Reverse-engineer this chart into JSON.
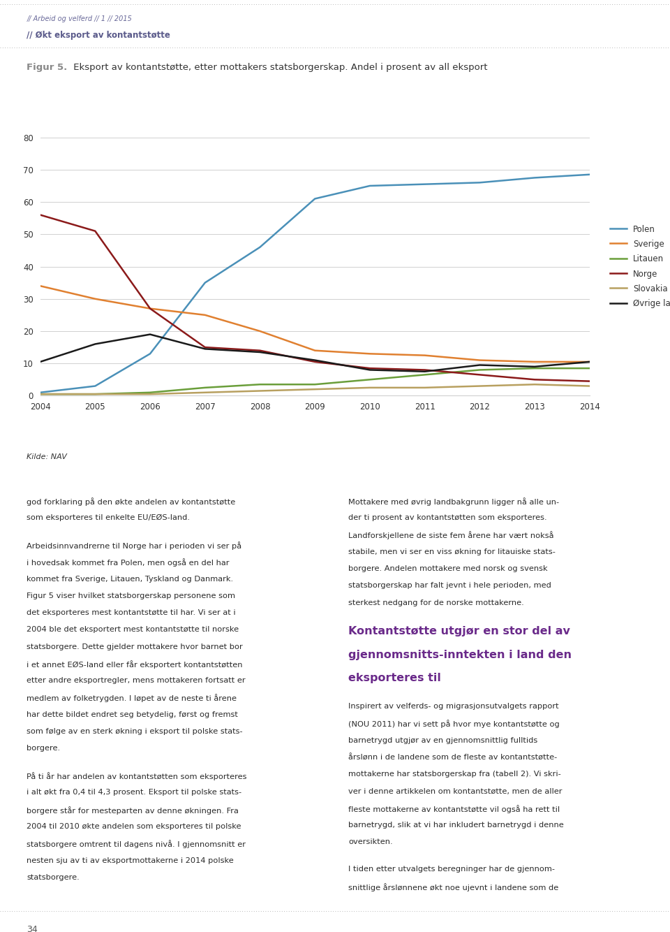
{
  "title_bold": "Figur 5.",
  "title_regular": " Eksport av kontantstøtte, etter mottakers statsborgerskap. Andel i prosent av all eksport",
  "header_line1": "// Arbeid og velferd // 1 // 2015",
  "header_line2": "// Økt eksport av kontantstøtte",
  "source_label": "Kilde: NAV",
  "page_number": "34",
  "years": [
    2004,
    2005,
    2006,
    2007,
    2008,
    2009,
    2010,
    2011,
    2012,
    2013,
    2014
  ],
  "Polen": [
    1.0,
    3.0,
    13.0,
    35.0,
    46.0,
    61.0,
    65.0,
    65.5,
    66.0,
    67.5,
    68.5
  ],
  "Sverige": [
    34.0,
    30.0,
    27.0,
    25.0,
    20.0,
    14.0,
    13.0,
    12.5,
    11.0,
    10.5,
    10.5
  ],
  "Litauen": [
    0.5,
    0.5,
    1.0,
    2.5,
    3.5,
    3.5,
    5.0,
    6.5,
    8.0,
    8.5,
    8.5
  ],
  "Norge": [
    56.0,
    51.0,
    27.0,
    15.0,
    14.0,
    10.5,
    8.5,
    8.0,
    6.5,
    5.0,
    4.5
  ],
  "Slovakia": [
    0.5,
    0.5,
    0.5,
    1.0,
    1.5,
    2.0,
    2.5,
    2.5,
    3.0,
    3.5,
    3.0
  ],
  "Ovrige": [
    10.5,
    16.0,
    19.0,
    14.5,
    13.5,
    11.0,
    8.0,
    7.5,
    9.5,
    9.0,
    10.5
  ],
  "colors": {
    "Polen": "#4a90b8",
    "Sverige": "#e08030",
    "Litauen": "#6a9e3a",
    "Norge": "#8b1a1a",
    "Slovakia": "#b8a060",
    "Ovrige": "#1a1a1a"
  },
  "legend_labels": {
    "Polen": "Polen",
    "Sverige": "Sverige",
    "Litauen": "Litauen",
    "Norge": "Norge",
    "Slovakia": "Slovakia",
    "Ovrige": "Øvrige land"
  },
  "ylim": [
    0,
    80
  ],
  "yticks": [
    0,
    10,
    20,
    30,
    40,
    50,
    60,
    70,
    80
  ],
  "body_left_col": "god forklaring på den økte andelen av kontantstøtte\nsom eksporteres til enkelte EU/EØS-land.\n\nArbeidsinnvandrerne til Norge har i perioden vi ser på\ni hovedsak kommet fra Polen, men også en del har\nkommet fra Sverige, Litauen, Tyskland og Danmark.\nFigur 5 viser hvilket statsborgerskap personene som\ndet eksporteres mest kontantstøtte til har. Vi ser at i\n2004 ble det eksportert mest kontantstøtte til norske\nstatsborgere. Dette gjelder mottakere hvor barnet bor\ni et annet EØS-land eller får eksportert kontantstøtten\netter andre eksportregler, mens mottakeren fortsatt er\nmedlem av folketrygden. I løpet av de neste ti årene\nhar dette bildet endret seg betydelig, først og fremst\nsom følge av en sterk økning i eksport til polske stats-\nborgere.\n\nPå ti år har andelen av kontantstøtten som eksporteres\ni alt økt fra 0,4 til 4,3 prosent. Eksport til polske stats-\nborgere står for mesteparten av denne økningen. Fra\n2004 til 2010 økte andelen som eksporteres til polske\nstatsborgere omtrent til dagens nivå. I gjennomsnitt er\nnesten sju av ti av eksportmottakerne i 2014 polske\nstatsborgere.",
  "body_right_col": "Mottakere med øvrig landbakgrunn ligger nå alle un-\nder ti prosent av kontantstøtten som eksporteres.\nLandforskjellene de siste fem årene har vært nokså\nstabile, men vi ser en viss økning for litauiske stats-\nborgere. Andelen mottakere med norsk og svensk\nstatsborgerskap har falt jevnt i hele perioden, med\nsterkest nedgang for de norske mottakerne.",
  "section_heading": "Kontantstøtte utgjør en stor del av\ngjennomsnitts­inntekten i land den\neksporteres til",
  "body_right_col2": "Inspirert av velferds- og migrasjonsutvalgets rapport\n(NOU 2011) har vi sett på hvor mye kontantstøtte og\nbarnetrygd utgjør av en gjennomsnittlig fulltids\nårslønn i de landene som de fleste av kontantstøtte-\nmottakerne har statsborgerskap fra (tabell 2). Vi skri-\nver i denne artikkelen om kontantstøtte, men de aller\nfleste mottakerne av kontantstøtte vil også ha rett til\nbarnetrygd, slik at vi har inkludert barnetrygd i denne\noversikten.\n\nI tiden etter utvalgets beregninger har de gjennom-\nsnittlige årslønnene økt noe ujevnt i landene som de",
  "background_color": "#ffffff",
  "header_dotted_color": "#a0a0a0",
  "header_text_color": "#6a6a9a",
  "header_bold_color": "#5a5a8a",
  "title_bold_color": "#888888",
  "grid_color": "#d0d0d0",
  "body_text_color": "#2a2a2a",
  "section_heading_color": "#6a2a8a"
}
